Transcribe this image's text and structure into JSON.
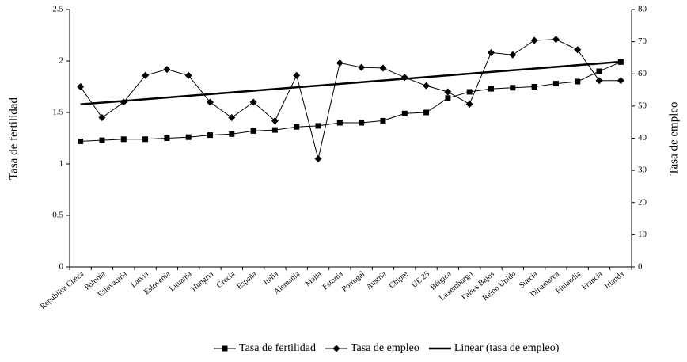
{
  "chart_data": {
    "type": "line",
    "categories": [
      "Republica Checa",
      "Polonia",
      "Eslovaquia",
      "Latvia",
      "Eslovenia",
      "Lituania",
      "Hungría",
      "Grecia",
      "España",
      "Italia",
      "Alemania",
      "Malta",
      "Estonia",
      "Portugal",
      "Austria",
      "Chipre",
      "UE 25",
      "Bélgica",
      "Luxemburgo",
      "Países Bajos",
      "Reino Unido",
      "Suecia",
      "Dinamarca",
      "Finlandia",
      "Francia",
      "Irlanda"
    ],
    "series": [
      {
        "name": "Tasa de fertilidad",
        "color": "#000000",
        "marker": "square",
        "values": [
          1.22,
          1.23,
          1.24,
          1.24,
          1.25,
          1.26,
          1.28,
          1.29,
          1.32,
          1.33,
          1.36,
          1.37,
          1.4,
          1.4,
          1.42,
          1.49,
          1.5,
          1.64,
          1.7,
          1.73,
          1.74,
          1.75,
          1.78,
          1.8,
          1.9,
          1.99
        ]
      },
      {
        "name": "Tasa de empleo",
        "color": "#000000",
        "marker": "diamond",
        "axis": "y2",
        "trendline": "Linear (tasa de empleo)",
        "values": [
          56.0,
          46.4,
          51.2,
          59.5,
          61.4,
          59.5,
          51.2,
          46.4,
          51.2,
          45.4,
          59.5,
          33.6,
          63.4,
          62.0,
          61.8,
          58.9,
          56.3,
          54.4,
          50.6,
          66.6,
          65.9,
          70.4,
          70.7,
          67.5,
          57.9,
          57.9
        ]
      }
    ],
    "ylabel": "Tasa de fertilidad",
    "y2label": "Tasa de empleo",
    "ylim": [
      0,
      2.5
    ],
    "yticks": [
      0,
      0.5,
      1,
      1.5,
      2,
      2.5
    ],
    "y2lim": [
      0,
      80
    ],
    "y2ticks": [
      0,
      10,
      20,
      30,
      40,
      50,
      60,
      70,
      80
    ],
    "grid": false,
    "legend": "bottom"
  }
}
